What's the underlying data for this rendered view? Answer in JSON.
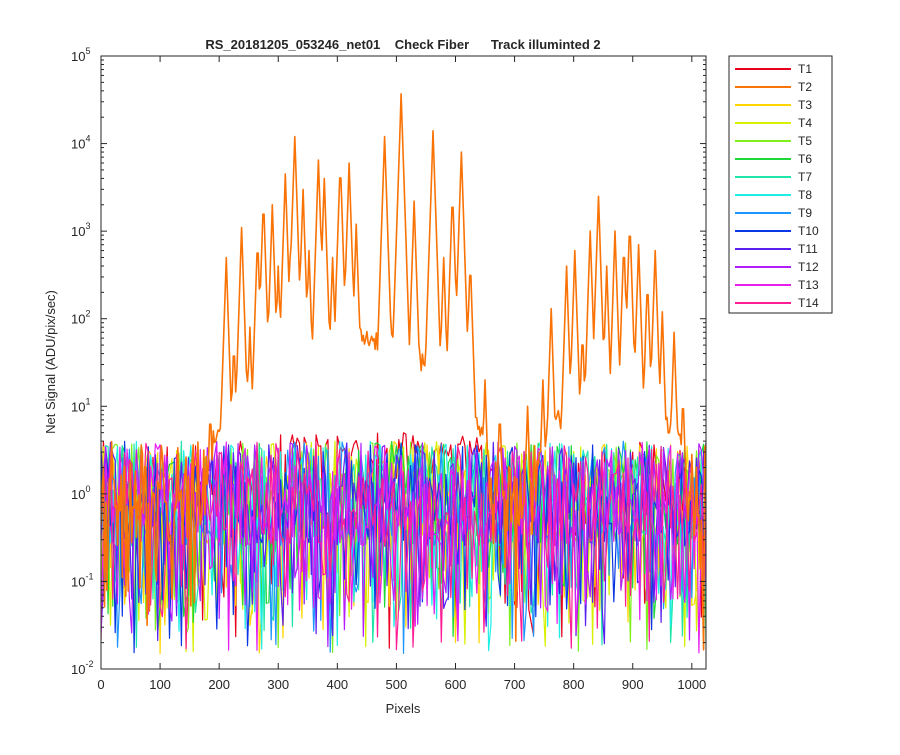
{
  "chart_data": {
    "type": "line",
    "title": "RS_20181205_053246_net01    Check Fiber      Track illuminted 2",
    "xlabel": "Pixels",
    "ylabel": "Net Signal (ADU/pix/sec)",
    "xlim": [
      0,
      1024
    ],
    "ylim": [
      0.01,
      100000
    ],
    "yscale": "log",
    "grid": false,
    "legend_position": "outside-top-right",
    "x_ticks": [
      0,
      100,
      200,
      300,
      400,
      500,
      600,
      700,
      800,
      900,
      1000
    ],
    "y_ticks": [
      {
        "value": 0.01,
        "base": "10",
        "exp": "-2"
      },
      {
        "value": 0.1,
        "base": "10",
        "exp": "-1"
      },
      {
        "value": 1,
        "base": "10",
        "exp": "0"
      },
      {
        "value": 10,
        "base": "10",
        "exp": "1"
      },
      {
        "value": 100,
        "base": "10",
        "exp": "2"
      },
      {
        "value": 1000,
        "base": "10",
        "exp": "3"
      },
      {
        "value": 10000,
        "base": "10",
        "exp": "4"
      },
      {
        "value": 100000,
        "base": "10",
        "exp": "5"
      }
    ],
    "noise_floor_range": [
      0.015,
      4
    ],
    "series": [
      {
        "name": "T1",
        "color": "#e8001c"
      },
      {
        "name": "T2",
        "color": "#f97306",
        "peaks": [
          {
            "x": 185,
            "y": 10
          },
          {
            "x": 212,
            "y": 500
          },
          {
            "x": 225,
            "y": 60
          },
          {
            "x": 238,
            "y": 1100
          },
          {
            "x": 252,
            "y": 80
          },
          {
            "x": 265,
            "y": 900
          },
          {
            "x": 275,
            "y": 2500
          },
          {
            "x": 290,
            "y": 2000
          },
          {
            "x": 300,
            "y": 400
          },
          {
            "x": 312,
            "y": 4500
          },
          {
            "x": 320,
            "y": 500
          },
          {
            "x": 328,
            "y": 12000
          },
          {
            "x": 342,
            "y": 3000
          },
          {
            "x": 352,
            "y": 600
          },
          {
            "x": 368,
            "y": 6500
          },
          {
            "x": 378,
            "y": 4000
          },
          {
            "x": 392,
            "y": 500
          },
          {
            "x": 405,
            "y": 6500
          },
          {
            "x": 420,
            "y": 6000
          },
          {
            "x": 432,
            "y": 1200
          },
          {
            "x": 480,
            "y": 12000
          },
          {
            "x": 508,
            "y": 37000
          },
          {
            "x": 530,
            "y": 2200
          },
          {
            "x": 562,
            "y": 14000
          },
          {
            "x": 580,
            "y": 500
          },
          {
            "x": 595,
            "y": 3000
          },
          {
            "x": 610,
            "y": 8000
          },
          {
            "x": 625,
            "y": 500
          },
          {
            "x": 650,
            "y": 20
          },
          {
            "x": 675,
            "y": 10
          },
          {
            "x": 722,
            "y": 10
          },
          {
            "x": 748,
            "y": 20
          },
          {
            "x": 762,
            "y": 130
          },
          {
            "x": 788,
            "y": 400
          },
          {
            "x": 802,
            "y": 600
          },
          {
            "x": 815,
            "y": 80
          },
          {
            "x": 828,
            "y": 1000
          },
          {
            "x": 842,
            "y": 2500
          },
          {
            "x": 856,
            "y": 400
          },
          {
            "x": 870,
            "y": 1000
          },
          {
            "x": 885,
            "y": 800
          },
          {
            "x": 895,
            "y": 1400
          },
          {
            "x": 910,
            "y": 700
          },
          {
            "x": 925,
            "y": 300
          },
          {
            "x": 938,
            "y": 600
          },
          {
            "x": 950,
            "y": 120
          },
          {
            "x": 970,
            "y": 70
          },
          {
            "x": 985,
            "y": 15
          }
        ]
      },
      {
        "name": "T3",
        "color": "#ffd500"
      },
      {
        "name": "T4",
        "color": "#d8f000"
      },
      {
        "name": "T5",
        "color": "#7ef01e"
      },
      {
        "name": "T6",
        "color": "#1ed83a"
      },
      {
        "name": "T7",
        "color": "#1ee6a8"
      },
      {
        "name": "T8",
        "color": "#1eeee6"
      },
      {
        "name": "T9",
        "color": "#1e96ff"
      },
      {
        "name": "T10",
        "color": "#0a37e6"
      },
      {
        "name": "T11",
        "color": "#5a1ef0"
      },
      {
        "name": "T12",
        "color": "#b41eff"
      },
      {
        "name": "T13",
        "color": "#e61ef0"
      },
      {
        "name": "T14",
        "color": "#ff1e96"
      }
    ]
  }
}
